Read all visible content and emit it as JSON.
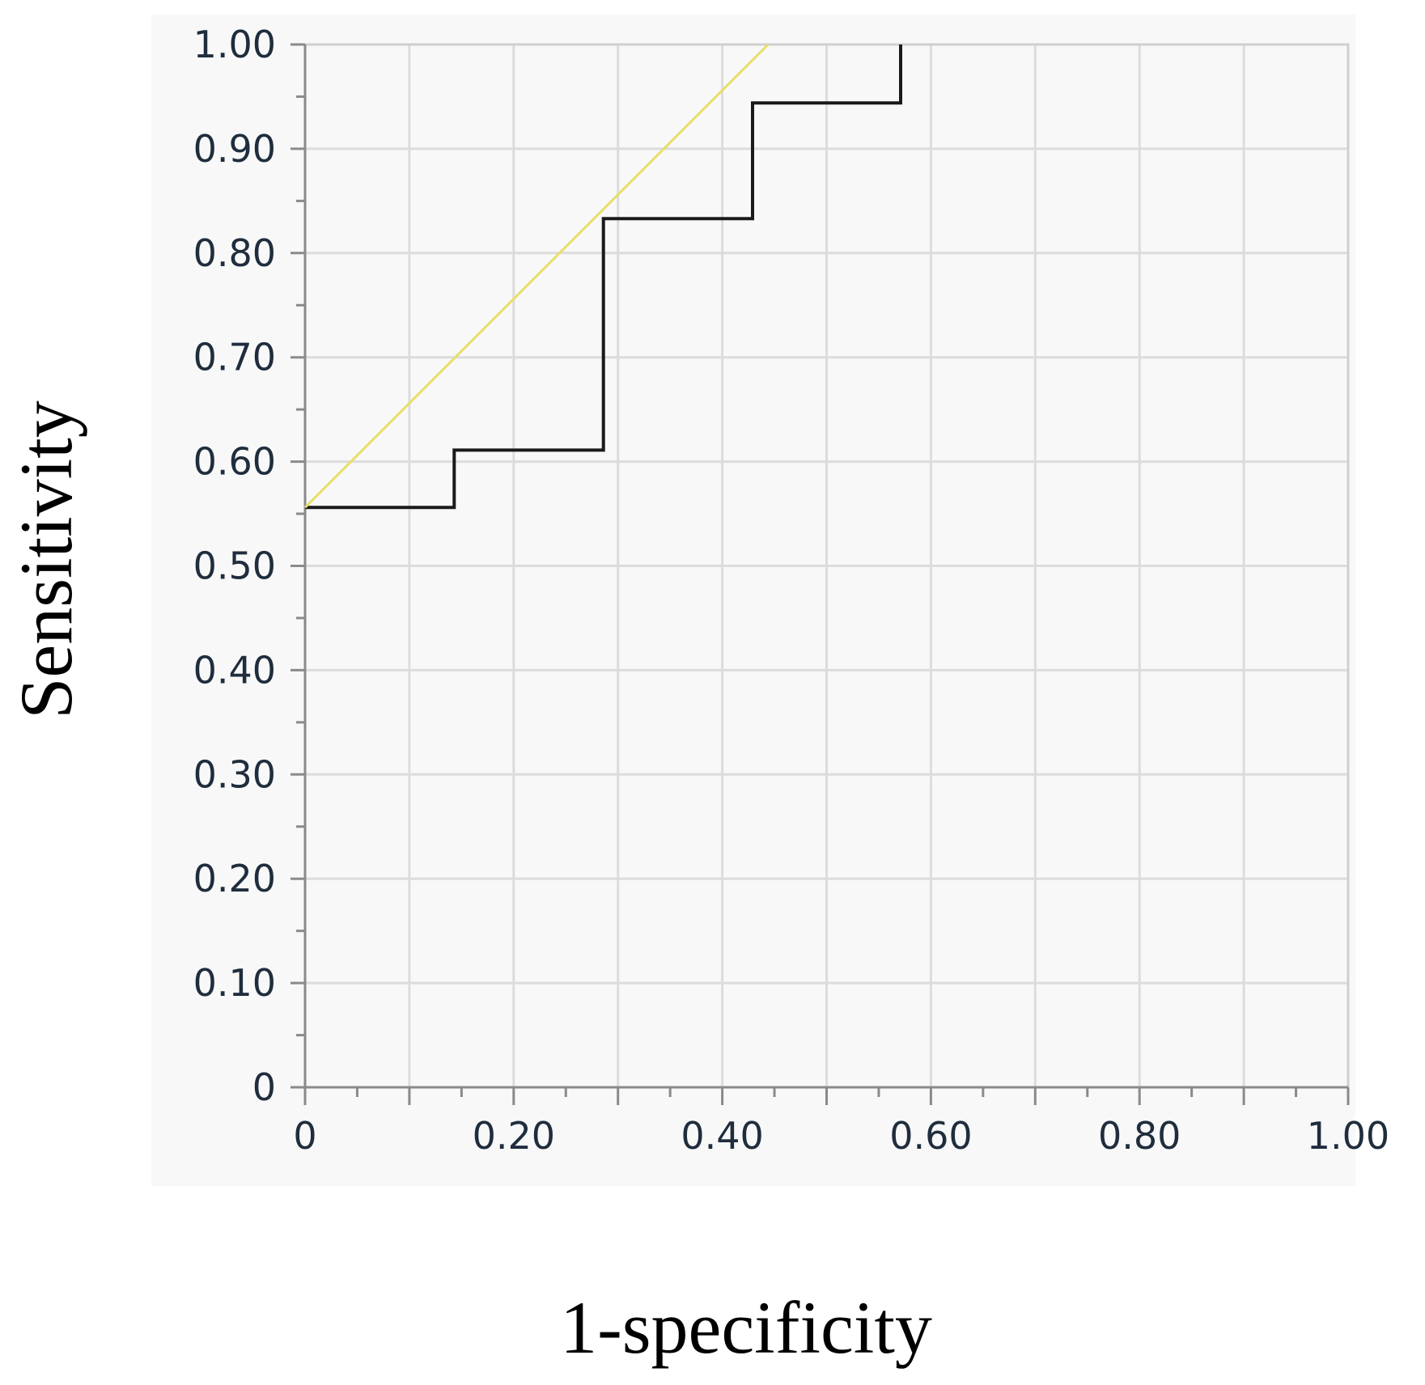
{
  "chart_data": {
    "type": "line",
    "xlabel": "1-specificity",
    "ylabel": "Sensitivity",
    "xlim": [
      0,
      1.0
    ],
    "ylim": [
      0,
      1.0
    ],
    "x_ticks": [
      "0",
      "0.20",
      "0.40",
      "0.60",
      "0.80",
      "1.00"
    ],
    "x_tick_values": [
      0,
      0.2,
      0.4,
      0.6,
      0.8,
      1.0
    ],
    "y_ticks": [
      "0",
      "0.10",
      "0.20",
      "0.30",
      "0.40",
      "0.50",
      "0.60",
      "0.70",
      "0.80",
      "0.90",
      "1.00"
    ],
    "y_tick_values": [
      0,
      0.1,
      0.2,
      0.3,
      0.4,
      0.5,
      0.6,
      0.7,
      0.8,
      0.9,
      1.0
    ],
    "grid": true,
    "series": [
      {
        "kind": "step",
        "color": "#1a1a1a",
        "x": [
          0,
          0.143,
          0.143,
          0.286,
          0.286,
          0.429,
          0.429,
          0.571,
          0.571
        ],
        "y": [
          0.556,
          0.556,
          0.611,
          0.611,
          0.833,
          0.833,
          0.944,
          0.944,
          1.0
        ]
      },
      {
        "kind": "line",
        "color": "#e8df6a",
        "x": [
          0,
          0.444
        ],
        "y": [
          0.556,
          1.0
        ]
      }
    ],
    "colors": {
      "plot_background": "#f8f8f8",
      "grid": "#dcdcdc",
      "frame": "#cfcfcf"
    }
  }
}
